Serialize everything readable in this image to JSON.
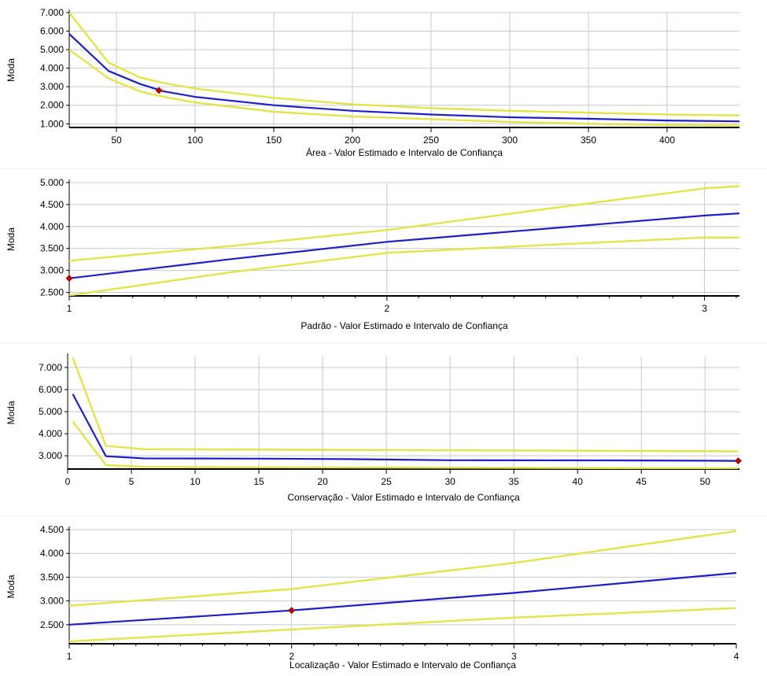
{
  "colors": {
    "estimate": "#1f1fc8",
    "confidence": "#e3e34a",
    "point": "#c00000",
    "grid": "#c8c8c8",
    "axis": "#000000"
  },
  "chart_data": [
    {
      "type": "line",
      "xlabel": "Área - Valor Estimado e Intervalo de Confiança",
      "ylabel": "Moda",
      "xlim": [
        20,
        446
      ],
      "ylim": [
        800,
        7000
      ],
      "x_ticks": [
        50,
        100,
        150,
        200,
        250,
        300,
        350,
        400
      ],
      "x_tick_labels": [
        "50",
        "100",
        "150",
        "200",
        "250",
        "300",
        "350",
        "400"
      ],
      "y_ticks": [
        1000,
        2000,
        3000,
        4000,
        5000,
        6000,
        7000
      ],
      "y_tick_labels": [
        "1.000",
        "2.000",
        "3.000",
        "4.000",
        "5.000",
        "6.000",
        "7.000"
      ],
      "minor_x_ticks": [],
      "grid": true,
      "marker": [
        77,
        2800
      ],
      "series": [
        {
          "role": "upper",
          "x": [
            20,
            45,
            65,
            80,
            100,
            150,
            200,
            250,
            300,
            350,
            400,
            446
          ],
          "values": [
            7000,
            4300,
            3500,
            3200,
            2900,
            2400,
            2050,
            1850,
            1700,
            1600,
            1500,
            1450
          ]
        },
        {
          "role": "estimate",
          "x": [
            20,
            45,
            65,
            80,
            100,
            150,
            200,
            250,
            300,
            350,
            400,
            446
          ],
          "values": [
            5850,
            3850,
            3150,
            2750,
            2450,
            2000,
            1700,
            1500,
            1350,
            1270,
            1180,
            1130
          ]
        },
        {
          "role": "lower",
          "x": [
            20,
            45,
            65,
            80,
            100,
            150,
            200,
            250,
            300,
            350,
            400,
            446
          ],
          "values": [
            5000,
            3450,
            2750,
            2450,
            2150,
            1650,
            1400,
            1250,
            1100,
            1000,
            930,
            900
          ]
        }
      ]
    },
    {
      "type": "line",
      "xlabel": "Padrão - Valor Estimado e Intervalo de Confiança",
      "ylabel": "Moda",
      "xlim": [
        1,
        3.11
      ],
      "ylim": [
        2420,
        5000
      ],
      "x_ticks": [
        1,
        2,
        3
      ],
      "x_tick_labels": [
        "1",
        "2",
        "3"
      ],
      "y_ticks": [
        2500,
        3000,
        3500,
        4000,
        4500,
        5000
      ],
      "y_tick_labels": [
        "2.500",
        "3.000",
        "3.500",
        "4.000",
        "4.500",
        "5.000"
      ],
      "minor_x_ticks": [
        1.1,
        1.2,
        1.3,
        1.4,
        1.5,
        1.6,
        1.7,
        1.8,
        1.9,
        2.1,
        2.2,
        2.3,
        2.4,
        2.5,
        2.6,
        2.7,
        2.8,
        2.9,
        3.1
      ],
      "grid": true,
      "marker": [
        1,
        2820
      ],
      "series": [
        {
          "role": "upper",
          "x": [
            1,
            1.5,
            2,
            2.5,
            3,
            3.11
          ],
          "values": [
            3220,
            3550,
            3920,
            4400,
            4870,
            4920
          ]
        },
        {
          "role": "estimate",
          "x": [
            1,
            1.5,
            2,
            2.5,
            3,
            3.11
          ],
          "values": [
            2820,
            3250,
            3650,
            3950,
            4250,
            4300
          ]
        },
        {
          "role": "lower",
          "x": [
            1,
            1.5,
            2,
            2.5,
            3,
            3.11
          ],
          "values": [
            2430,
            2950,
            3400,
            3580,
            3750,
            3750
          ]
        }
      ]
    },
    {
      "type": "line",
      "xlabel": "Conservação - Valor Estimado e Intervalo de Confiança",
      "ylabel": "Moda",
      "xlim": [
        0,
        52.7
      ],
      "ylim": [
        2400,
        7500
      ],
      "x_ticks": [
        0,
        5,
        10,
        15,
        20,
        25,
        30,
        35,
        40,
        45,
        50
      ],
      "x_tick_labels": [
        "0",
        "5",
        "10",
        "15",
        "20",
        "25",
        "30",
        "35",
        "40",
        "45",
        "50"
      ],
      "y_ticks": [
        3000,
        4000,
        5000,
        6000,
        7000
      ],
      "y_tick_labels": [
        "3.000",
        "4.000",
        "5.000",
        "6.000",
        "7.000"
      ],
      "minor_x_ticks": [],
      "grid": true,
      "marker": [
        52.6,
        2770
      ],
      "series": [
        {
          "role": "upper",
          "x": [
            0.4,
            3,
            6,
            15,
            30,
            45,
            52.6
          ],
          "values": [
            7450,
            3450,
            3300,
            3280,
            3250,
            3220,
            3200
          ]
        },
        {
          "role": "estimate",
          "x": [
            0.4,
            3,
            6,
            15,
            22,
            30,
            45,
            52.6
          ],
          "values": [
            5800,
            2980,
            2880,
            2870,
            2850,
            2800,
            2790,
            2770
          ]
        },
        {
          "role": "lower",
          "x": [
            0.4,
            3,
            6,
            15,
            30,
            45,
            52.6
          ],
          "values": [
            4550,
            2580,
            2500,
            2480,
            2460,
            2440,
            2430
          ]
        }
      ]
    },
    {
      "type": "line",
      "xlabel": "Localização - Valor Estimado e Intervalo de Confiança",
      "ylabel": "Moda",
      "xlim": [
        1,
        4
      ],
      "ylim": [
        2100,
        4500
      ],
      "x_ticks": [
        1,
        2,
        3,
        4
      ],
      "x_tick_labels": [
        "1",
        "2",
        "3",
        "4"
      ],
      "y_ticks": [
        2500,
        3000,
        3500,
        4000,
        4500
      ],
      "y_tick_labels": [
        "2.500",
        "3.000",
        "3.500",
        "4.000",
        "4.500"
      ],
      "minor_x_ticks": [
        1.1,
        1.2,
        1.3,
        1.4,
        1.5,
        1.6,
        1.7,
        1.8,
        1.9,
        2.1,
        2.2,
        2.3,
        2.4,
        2.5,
        2.6,
        2.7,
        2.8,
        2.9,
        3.1,
        3.2,
        3.3,
        3.4,
        3.5,
        3.6,
        3.7,
        3.8,
        3.9
      ],
      "grid": true,
      "marker": [
        2,
        2800
      ],
      "series": [
        {
          "role": "upper",
          "x": [
            1,
            2,
            3,
            4
          ],
          "values": [
            2900,
            3250,
            3800,
            4470
          ]
        },
        {
          "role": "estimate",
          "x": [
            1,
            2,
            3,
            4
          ],
          "values": [
            2500,
            2800,
            3170,
            3590
          ]
        },
        {
          "role": "lower",
          "x": [
            1,
            2,
            3,
            4
          ],
          "values": [
            2150,
            2400,
            2650,
            2850
          ]
        }
      ]
    }
  ]
}
